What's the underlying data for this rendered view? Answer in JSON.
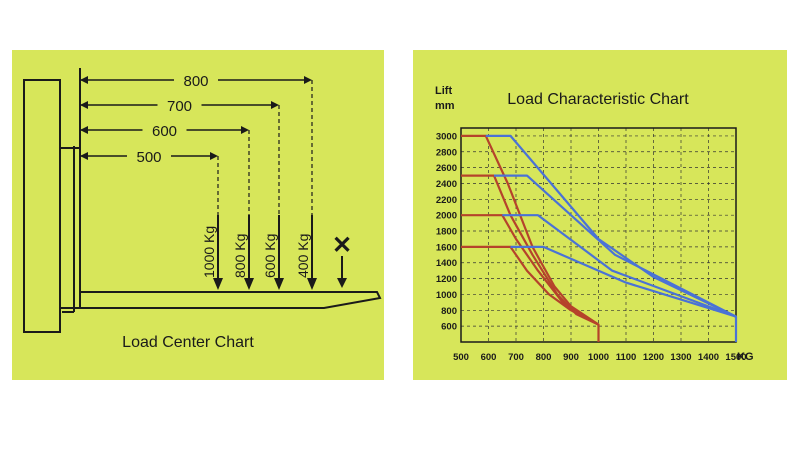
{
  "load_center": {
    "caption": "Load Center Chart",
    "dimensions": [
      {
        "label": "800"
      },
      {
        "label": "700"
      },
      {
        "label": "600"
      },
      {
        "label": "500"
      }
    ],
    "loads": [
      {
        "label": "1000 Kg"
      },
      {
        "label": "800 Kg"
      },
      {
        "label": "600 Kg"
      },
      {
        "label": "400 Kg"
      }
    ],
    "prohibited_mark": "✕",
    "colors": {
      "background": "#d7e65a",
      "line": "#1a1a1a",
      "mark": "#c0392b"
    }
  },
  "chart_data": {
    "type": "line",
    "title": "Load Characteristic Chart",
    "ylabel": "Lift",
    "yunit": "mm",
    "xunit": "KG",
    "xlim": [
      500,
      1500
    ],
    "ylim": [
      400,
      3100
    ],
    "x_ticks": [
      500,
      600,
      700,
      800,
      900,
      1000,
      1100,
      1200,
      1300,
      1400,
      1500
    ],
    "y_ticks": [
      600,
      800,
      1000,
      1200,
      1400,
      1600,
      1800,
      2000,
      2200,
      2400,
      2600,
      2800,
      3000
    ],
    "grid": true,
    "colors": {
      "red": "#b5432b",
      "blue": "#4a72d6",
      "background": "#d7e65a"
    },
    "series": [
      {
        "color": "red",
        "points": [
          [
            500,
            3000
          ],
          [
            590,
            3000
          ],
          [
            670,
            2400
          ],
          [
            760,
            1600
          ],
          [
            840,
            1100
          ],
          [
            900,
            850
          ],
          [
            1000,
            620
          ],
          [
            1000,
            400
          ]
        ]
      },
      {
        "color": "red",
        "points": [
          [
            500,
            2500
          ],
          [
            620,
            2500
          ],
          [
            680,
            2000
          ],
          [
            760,
            1500
          ],
          [
            850,
            1000
          ],
          [
            920,
            750
          ],
          [
            1000,
            620
          ]
        ]
      },
      {
        "color": "red",
        "points": [
          [
            500,
            2000
          ],
          [
            650,
            2000
          ],
          [
            700,
            1700
          ],
          [
            780,
            1300
          ],
          [
            870,
            900
          ],
          [
            1000,
            620
          ]
        ]
      },
      {
        "color": "red",
        "points": [
          [
            500,
            1600
          ],
          [
            680,
            1600
          ],
          [
            740,
            1300
          ],
          [
            820,
            1000
          ],
          [
            900,
            800
          ],
          [
            1000,
            620
          ]
        ]
      },
      {
        "color": "blue",
        "points": [
          [
            590,
            3000
          ],
          [
            680,
            3000
          ],
          [
            1000,
            1700
          ],
          [
            1200,
            1220
          ],
          [
            1500,
            720
          ],
          [
            1500,
            400
          ]
        ]
      },
      {
        "color": "blue",
        "points": [
          [
            620,
            2500
          ],
          [
            740,
            2500
          ],
          [
            1060,
            1500
          ],
          [
            1500,
            720
          ]
        ]
      },
      {
        "color": "blue",
        "points": [
          [
            650,
            2000
          ],
          [
            780,
            2000
          ],
          [
            1050,
            1300
          ],
          [
            1500,
            720
          ]
        ]
      },
      {
        "color": "blue",
        "points": [
          [
            680,
            1600
          ],
          [
            800,
            1600
          ],
          [
            1100,
            1150
          ],
          [
            1500,
            720
          ]
        ]
      }
    ]
  }
}
